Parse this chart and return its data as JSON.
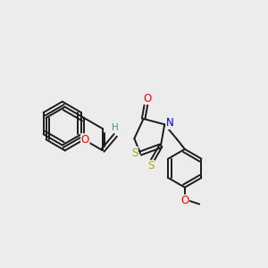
{
  "background_color": "#ececec",
  "bond_color": "#1a1a1a",
  "bond_width": 1.4,
  "atom_colors": {
    "O": "#ff0000",
    "N": "#0000cc",
    "S": "#aaaa00",
    "H": "#4a9090",
    "C": "#1a1a1a"
  },
  "font_size_atom": 8.5,
  "fig_width": 3.0,
  "fig_height": 3.0,
  "xlim": [
    0,
    10
  ],
  "ylim": [
    0,
    10
  ]
}
